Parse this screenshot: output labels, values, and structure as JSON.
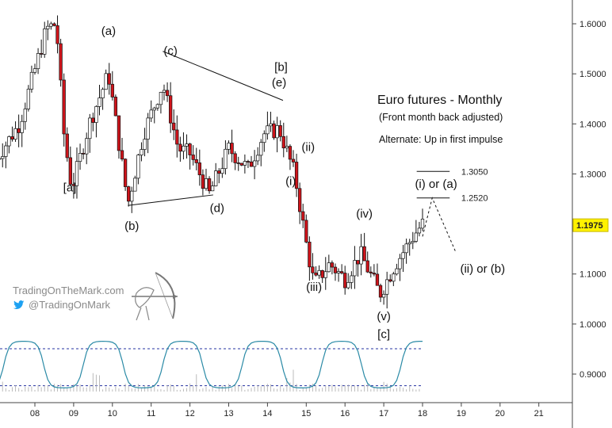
{
  "chart_data": {
    "type": "candlestick",
    "title": "Euro futures - Monthly",
    "subtitle": "(Front month back adjusted)",
    "note": "Alternate: Up in first impulse",
    "price_axis": {
      "ticks": [
        "1.6000",
        "1.5000",
        "1.4000",
        "1.3000",
        "1.2000",
        "1.1000",
        "1.0000",
        "0.9000"
      ],
      "tick_values": [
        1.6,
        1.5,
        1.4,
        1.3,
        1.2,
        1.1,
        1.0,
        0.9
      ],
      "current_price": "1.1975",
      "current_value": 1.1975
    },
    "time_axis": {
      "ticks": [
        "'",
        "08",
        "09",
        "10",
        "11",
        "12",
        "13",
        "14",
        "15",
        "16",
        "17",
        "18",
        "19",
        "20",
        "21"
      ],
      "tick_years": [
        2007,
        2008,
        2009,
        2010,
        2011,
        2012,
        2013,
        2014,
        2015,
        2016,
        2017,
        2018,
        2019,
        2020,
        2021
      ]
    },
    "price_range": [
      1.02,
      1.62
    ],
    "anchors": [
      {
        "t": 2007.0,
        "v": 1.33
      },
      {
        "t": 2007.6,
        "v": 1.4
      },
      {
        "t": 2008.3,
        "v": 1.59
      },
      {
        "t": 2008.55,
        "v": 1.6
      },
      {
        "t": 2008.75,
        "v": 1.38
      },
      {
        "t": 2008.95,
        "v": 1.27
      },
      {
        "t": 2009.4,
        "v": 1.4
      },
      {
        "t": 2009.9,
        "v": 1.5
      },
      {
        "t": 2010.4,
        "v": 1.24
      },
      {
        "t": 2010.8,
        "v": 1.38
      },
      {
        "t": 2011.3,
        "v": 1.48
      },
      {
        "t": 2011.7,
        "v": 1.35
      },
      {
        "t": 2012.0,
        "v": 1.34
      },
      {
        "t": 2012.5,
        "v": 1.26
      },
      {
        "t": 2013.0,
        "v": 1.35
      },
      {
        "t": 2013.5,
        "v": 1.31
      },
      {
        "t": 2013.9,
        "v": 1.38
      },
      {
        "t": 2014.3,
        "v": 1.39
      },
      {
        "t": 2014.7,
        "v": 1.3
      },
      {
        "t": 2015.0,
        "v": 1.16
      },
      {
        "t": 2015.2,
        "v": 1.08
      },
      {
        "t": 2015.6,
        "v": 1.12
      },
      {
        "t": 2016.0,
        "v": 1.09
      },
      {
        "t": 2016.4,
        "v": 1.14
      },
      {
        "t": 2016.9,
        "v": 1.06
      },
      {
        "t": 2017.3,
        "v": 1.12
      },
      {
        "t": 2017.8,
        "v": 1.18
      },
      {
        "t": 2018.0,
        "v": 1.2
      }
    ],
    "wave_labels": [
      {
        "text": "[a]",
        "t": 2008.9,
        "v": 1.265
      },
      {
        "text": "(a)",
        "t": 2009.9,
        "v": 1.578
      },
      {
        "text": "(b)",
        "t": 2010.5,
        "v": 1.188
      },
      {
        "text": "(c)",
        "t": 2011.5,
        "v": 1.538
      },
      {
        "text": "(d)",
        "t": 2012.7,
        "v": 1.224
      },
      {
        "text": "[b]",
        "t": 2014.35,
        "v": 1.506
      },
      {
        "text": "(e)",
        "t": 2014.3,
        "v": 1.475
      },
      {
        "text": "(ii)",
        "t": 2015.05,
        "v": 1.346
      },
      {
        "text": "(i)",
        "t": 2014.6,
        "v": 1.278
      },
      {
        "text": "(iv)",
        "t": 2016.5,
        "v": 1.213
      },
      {
        "text": "(iii)",
        "t": 2015.2,
        "v": 1.066
      },
      {
        "text": "(v)",
        "t": 2017.0,
        "v": 1.008
      },
      {
        "text": "[c]",
        "t": 2017.0,
        "v": 0.972
      },
      {
        "text": "(i) or (a)",
        "t": 2018.35,
        "v": 1.272
      },
      {
        "text": "(ii) or (b)",
        "t": 2019.55,
        "v": 1.103
      }
    ],
    "targets": [
      {
        "label": "1.3050",
        "value": 1.305
      },
      {
        "label": "1.2520",
        "value": 1.252
      }
    ],
    "trendlines": [
      {
        "t1": 2011.3,
        "v1": 1.545,
        "t2": 2014.4,
        "v2": 1.447
      },
      {
        "t1": 2010.4,
        "v1": 1.237,
        "t2": 2012.6,
        "v2": 1.258
      }
    ],
    "projection": [
      {
        "t": 2018.0,
        "v": 1.175
      },
      {
        "t": 2018.25,
        "v": 1.252
      },
      {
        "t": 2018.85,
        "v": 1.145
      }
    ],
    "oscillator": {
      "upper_level": 0.96,
      "lower_level": 0.89
    }
  },
  "branding": {
    "site": "TradingOnTheMark.com",
    "handle": "@TradingOnMark"
  },
  "colors": {
    "down_candle": "#d0141b",
    "up_candle": "#ffffff",
    "oscillator_line": "#2a8aa6",
    "dashed_level": "#2430a0",
    "price_tag": "#fff200",
    "twitter_bird": "#1da1f2"
  }
}
